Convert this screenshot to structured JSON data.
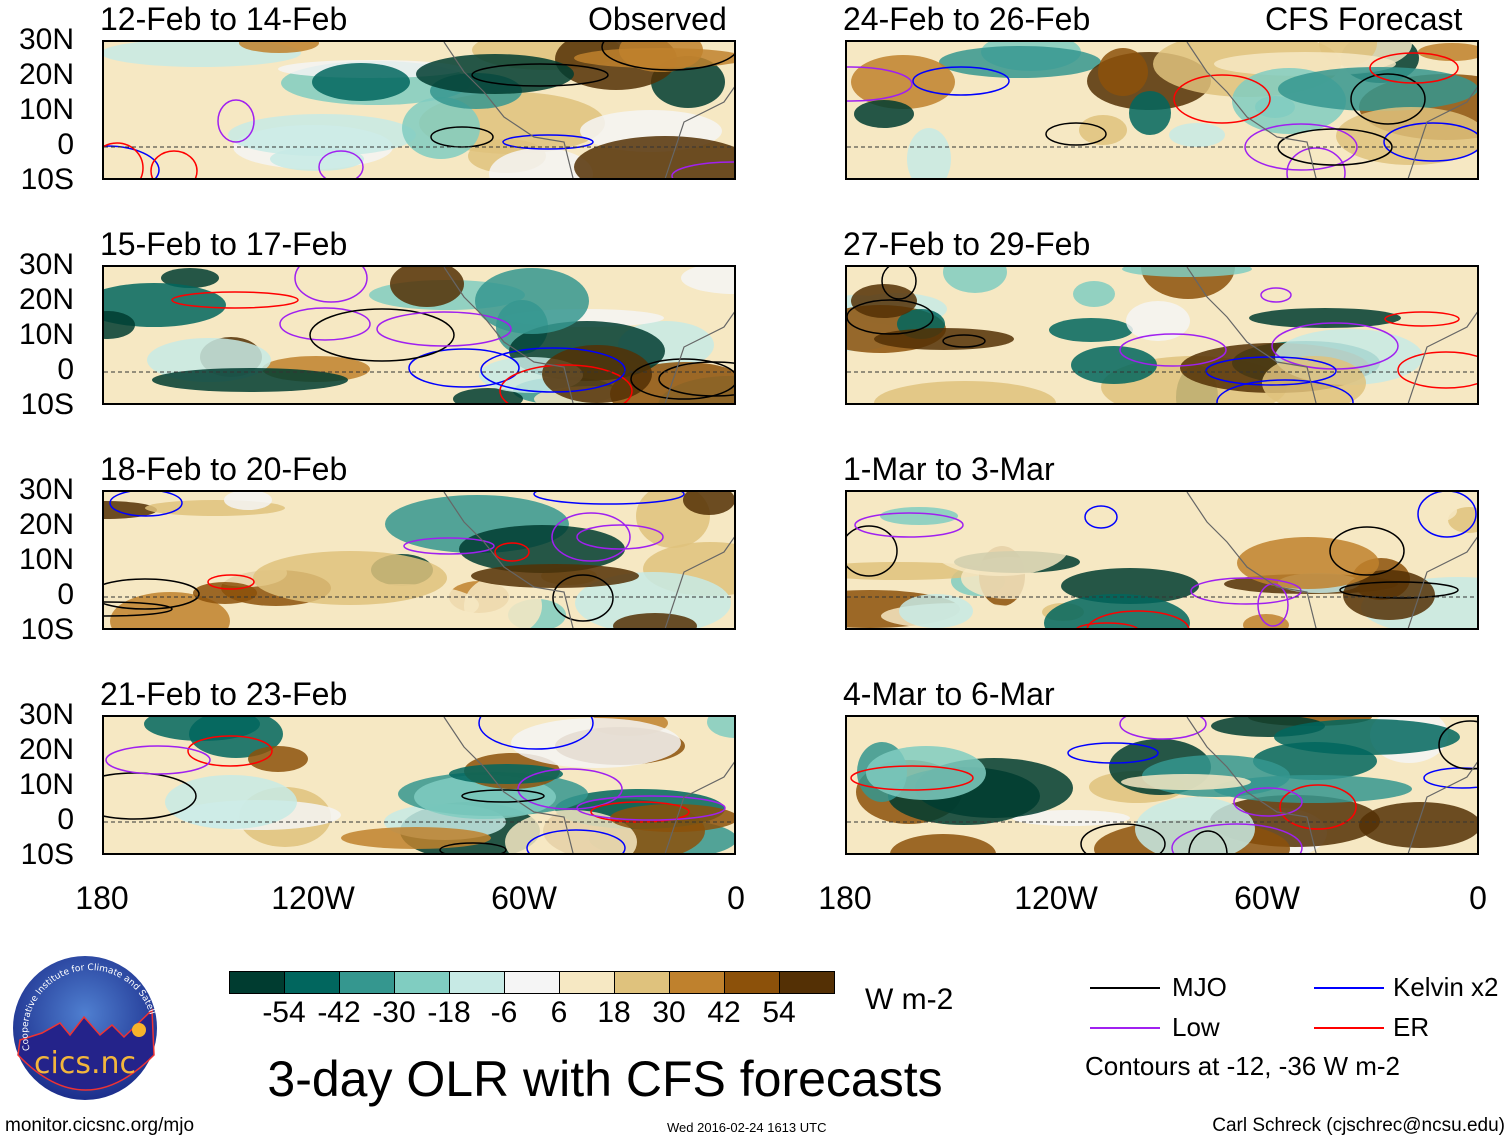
{
  "headers": {
    "observed": "Observed",
    "forecast": "CFS Forecast"
  },
  "panels": {
    "left": [
      "12-Feb to 14-Feb",
      "15-Feb to 17-Feb",
      "18-Feb to 20-Feb",
      "21-Feb to 23-Feb"
    ],
    "right": [
      "24-Feb to 26-Feb",
      "27-Feb to 29-Feb",
      "1-Mar to 3-Mar",
      "4-Mar to 6-Mar"
    ]
  },
  "lat_labels": [
    "30N",
    "20N",
    "10N",
    "0",
    "10S"
  ],
  "lon_labels": [
    "180",
    "120W",
    "60W",
    "0"
  ],
  "colorbar": {
    "colors": [
      "#003c30",
      "#01665e",
      "#35978f",
      "#80cdc1",
      "#c7eae5",
      "#f5f5f5",
      "#f6e8c3",
      "#dfc27d",
      "#bf812d",
      "#8c510a",
      "#543005"
    ],
    "labels": [
      "-54",
      "-42",
      "-30",
      "-18",
      "-6",
      "6",
      "18",
      "30",
      "42",
      "54"
    ],
    "units": "W m-2"
  },
  "legend": {
    "items": [
      {
        "label": "MJO",
        "color": "#000000"
      },
      {
        "label": "Low",
        "color": "#a020f0"
      },
      {
        "label": "Kelvin x2",
        "color": "#0000ff"
      },
      {
        "label": "ER",
        "color": "#ff0000"
      }
    ],
    "note": "Contours at -12, -36 W m-2"
  },
  "title": "3-day OLR with CFS forecasts",
  "footer": {
    "url": "monitor.cicsnc.org/mjo",
    "timestamp": "Wed 2016-02-24 1613 UTC",
    "author": "Carl Schreck (cjschrec@ncsu.edu)"
  },
  "logo": {
    "text": "cics.nc",
    "ring_text": "Cooperative Institute for Climate and Satellites"
  }
}
